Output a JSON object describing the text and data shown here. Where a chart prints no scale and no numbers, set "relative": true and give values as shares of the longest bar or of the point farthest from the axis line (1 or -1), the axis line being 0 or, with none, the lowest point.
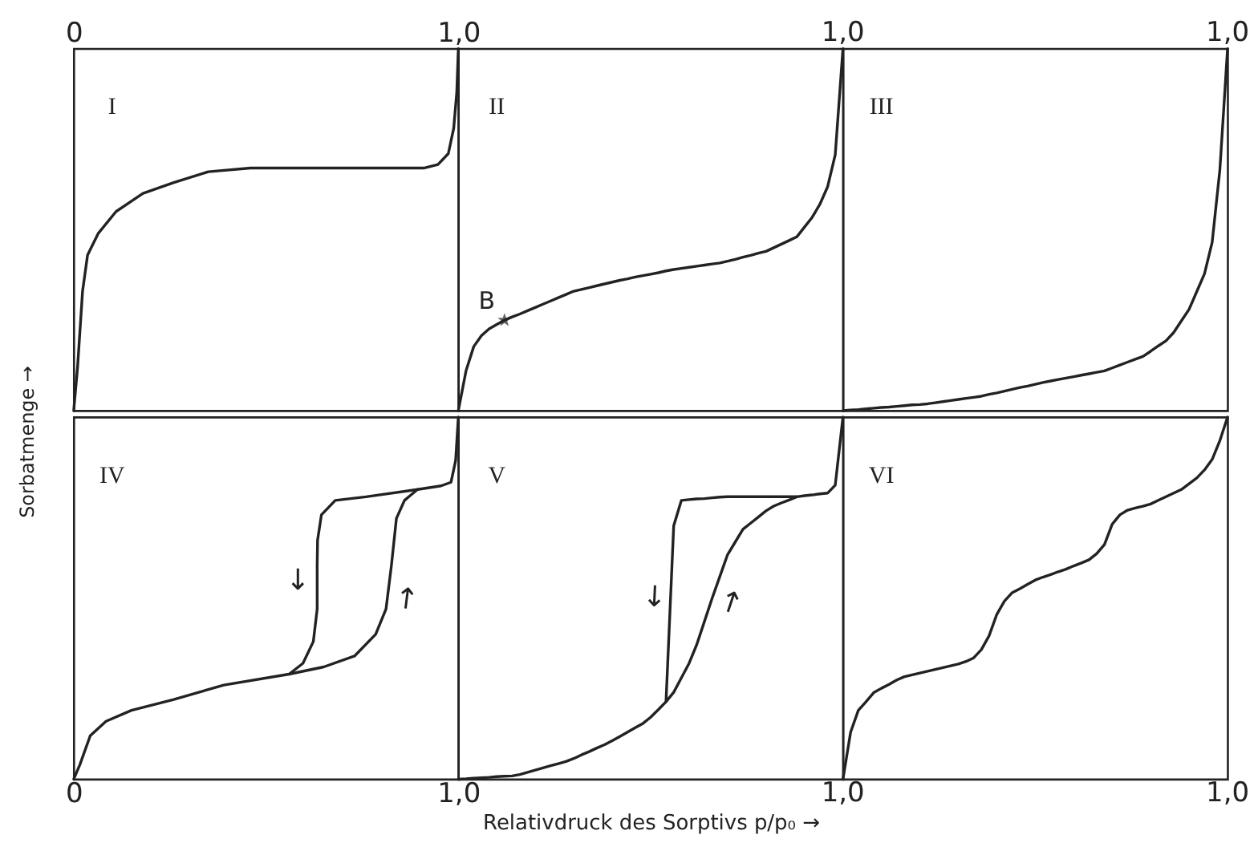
{
  "chart_data": [
    {
      "type": "line",
      "title": "I",
      "relative": true,
      "xlim": [
        0,
        1
      ],
      "xticks": [
        0,
        {
          "value": 1,
          "label": "1,0"
        }
      ],
      "series": [
        {
          "color": "#222222",
          "x": [
            0,
            0.01,
            0.023,
            0.036,
            0.064,
            0.11,
            0.18,
            0.26,
            0.35,
            0.46,
            0.62,
            0.76,
            0.91,
            0.947,
            0.974,
            0.988,
            0.996,
            1
          ],
          "values": [
            0,
            0.12,
            0.33,
            0.43,
            0.49,
            0.55,
            0.6,
            0.63,
            0.66,
            0.67,
            0.67,
            0.67,
            0.67,
            0.68,
            0.71,
            0.78,
            0.88,
            1
          ]
        }
      ]
    },
    {
      "type": "line",
      "title": "II",
      "relative": true,
      "annotations": [
        "1,0"
      ],
      "categories": [
        null,
        null,
        null,
        null,
        null,
        null,
        null,
        null,
        null,
        null,
        null,
        null,
        null,
        null,
        null,
        null,
        null,
        null,
        null,
        null,
        null,
        null,
        null,
        null,
        null,
        null,
        null,
        null,
        null,
        null,
        null,
        null,
        null,
        null,
        null,
        null,
        null,
        null,
        null,
        null,
        null,
        null,
        null,
        null,
        null,
        null,
        null,
        null,
        null,
        null,
        null
      ],
      "series": [
        {
          "color": "#222222",
          "values": [
            0,
            0.11,
            0.177,
            0.207,
            0.226,
            0.238,
            0.25,
            0.259,
            0.267,
            0.276,
            0.285,
            0.294,
            0.303,
            0.312,
            0.321,
            0.33,
            0.335,
            0.34,
            0.345,
            0.35,
            0.355,
            0.36,
            0.364,
            0.369,
            0.373,
            0.377,
            0.381,
            0.386,
            0.39,
            0.393,
            0.396,
            0.399,
            0.402,
            0.405,
            0.408,
            0.413,
            0.418,
            0.424,
            0.429,
            0.435,
            0.44,
            0.45,
            0.46,
            0.47,
            0.48,
            0.507,
            0.534,
            0.57,
            0.618,
            0.707,
            1
          ]
        },
        {
          "name": "B",
          "marker": "star",
          "color": "#222222",
          "values": [
            null,
            null,
            null,
            null,
            null,
            null,
            0.25,
            null,
            null,
            null,
            null,
            null,
            null,
            null,
            null,
            null,
            null,
            null,
            null,
            null,
            null,
            null,
            null,
            null,
            null,
            null,
            null,
            null,
            null,
            null,
            null,
            null,
            null,
            null,
            null,
            null,
            null,
            null,
            null,
            null,
            null,
            null,
            null,
            null,
            null,
            null,
            null,
            null,
            null,
            null,
            null
          ]
        }
      ]
    },
    {
      "type": "line",
      "title": "III",
      "relative": true,
      "annotations": [
        "1,0"
      ],
      "categories": [
        null,
        null,
        null,
        null,
        null,
        null,
        null,
        null,
        null,
        null,
        null,
        null,
        null,
        null,
        null,
        null,
        null,
        null,
        null,
        null,
        null,
        null,
        null,
        null,
        null,
        null,
        null,
        null,
        null,
        null,
        null,
        null,
        null,
        null,
        null,
        null,
        null,
        null,
        null,
        null,
        null,
        null,
        null,
        null,
        null,
        null,
        null,
        null,
        null,
        null,
        null
      ],
      "series": [
        {
          "color": "#222222",
          "values": [
            0,
            0.002,
            0.003,
            0.005,
            0.007,
            0.009,
            0.01,
            0.012,
            0.014,
            0.016,
            0.017,
            0.019,
            0.022,
            0.025,
            0.028,
            0.031,
            0.034,
            0.037,
            0.04,
            0.045,
            0.049,
            0.054,
            0.059,
            0.064,
            0.068,
            0.073,
            0.078,
            0.082,
            0.086,
            0.09,
            0.094,
            0.098,
            0.102,
            0.106,
            0.11,
            0.118,
            0.126,
            0.134,
            0.142,
            0.15,
            0.164,
            0.179,
            0.193,
            0.216,
            0.248,
            0.28,
            0.329,
            0.378,
            0.465,
            0.665,
            1
          ]
        }
      ]
    },
    {
      "type": "line",
      "title": "IV",
      "ylabel": "Sorbatmenge →",
      "relative": true,
      "xlim": [
        0,
        1
      ],
      "xticks": [
        0,
        {
          "value": 1,
          "label": "1,0"
        }
      ],
      "series": [
        {
          "name": "↑",
          "color": "#222222",
          "x": [
            0,
            0.016,
            0.043,
            0.084,
            0.15,
            0.26,
            0.39,
            0.56,
            0.65,
            0.73,
            0.785,
            0.812,
            0.826,
            0.839,
            0.86,
            0.894,
            0.955,
            0.981,
            0.993,
            1
          ],
          "values": [
            0,
            0.04,
            0.12,
            0.16,
            0.19,
            0.22,
            0.26,
            0.29,
            0.31,
            0.34,
            0.4,
            0.47,
            0.59,
            0.72,
            0.77,
            0.8,
            0.81,
            0.82,
            0.88,
            1
          ]
        },
        {
          "name": "↓",
          "color": "#222222",
          "x": [
            0.894,
            0.76,
            0.68,
            0.644,
            0.634,
            0.633,
            0.633,
            0.623,
            0.596,
            0.56
          ],
          "values": [
            0.8,
            0.78,
            0.77,
            0.73,
            0.66,
            0.59,
            0.47,
            0.38,
            0.32,
            0.29
          ]
        }
      ]
    },
    {
      "type": "line",
      "title": "V",
      "xlabel": "Relativdruck des Sorptivs  p/p₀  →",
      "relative": true,
      "annotations": [
        "1,0"
      ],
      "categories": [
        null,
        null,
        null,
        null,
        null,
        null,
        null,
        null,
        null,
        null,
        null,
        null,
        null,
        null,
        null,
        null,
        null,
        null,
        null,
        null,
        null,
        null,
        null,
        null,
        null,
        null,
        null,
        null,
        null,
        null,
        null,
        null,
        null,
        null,
        null,
        null,
        null,
        null,
        null,
        null,
        null,
        null,
        null,
        null,
        null,
        null,
        null,
        null,
        null,
        null,
        null
      ],
      "series": [
        {
          "name": "↑",
          "color": "#222222",
          "values": [
            0,
            0.001,
            0.003,
            0.004,
            0.005,
            0.007,
            0.008,
            0.009,
            0.013,
            0.019,
            0.025,
            0.031,
            0.037,
            0.043,
            0.049,
            0.057,
            0.067,
            0.076,
            0.086,
            0.095,
            0.106,
            0.118,
            0.13,
            0.142,
            0.154,
            0.171,
            0.192,
            0.214,
            0.24,
            0.28,
            0.32,
            0.372,
            0.436,
            0.5,
            0.56,
            0.62,
            0.655,
            0.69,
            0.707,
            0.724,
            0.741,
            0.754,
            0.763,
            0.771,
            0.78,
            0.783,
            0.785,
            0.788,
            0.79,
            0.812,
            1
          ]
        },
        {
          "name": "↓",
          "color": "#222222",
          "values": [
            null,
            null,
            null,
            null,
            null,
            null,
            null,
            null,
            null,
            null,
            null,
            null,
            null,
            null,
            null,
            null,
            null,
            null,
            null,
            null,
            null,
            null,
            null,
            null,
            null,
            null,
            null,
            0.214,
            0.7,
            0.77,
            0.772,
            0.774,
            0.775,
            0.777,
            0.779,
            0.78,
            0.78,
            0.78,
            0.78,
            0.78,
            0.78,
            0.78,
            0.78,
            0.78,
            0.78,
            null,
            null,
            null,
            null,
            null,
            null
          ]
        }
      ]
    },
    {
      "type": "line",
      "title": "VI",
      "relative": true,
      "annotations": [
        "1,0"
      ],
      "categories": [
        null,
        null,
        null,
        null,
        null,
        null,
        null,
        null,
        null,
        null,
        null,
        null,
        null,
        null,
        null,
        null,
        null,
        null,
        null,
        null,
        null,
        null,
        null,
        null,
        null,
        null,
        null,
        null,
        null,
        null,
        null,
        null,
        null,
        null,
        null,
        null,
        null,
        null,
        null,
        null,
        null,
        null,
        null,
        null,
        null,
        null,
        null,
        null,
        null,
        null,
        null
      ],
      "series": [
        {
          "color": "#222222",
          "values": [
            0,
            0.13,
            0.19,
            0.214,
            0.239,
            0.251,
            0.262,
            0.274,
            0.283,
            0.288,
            0.293,
            0.298,
            0.303,
            0.308,
            0.313,
            0.318,
            0.325,
            0.335,
            0.358,
            0.396,
            0.455,
            0.492,
            0.515,
            0.526,
            0.538,
            0.55,
            0.558,
            0.565,
            0.573,
            0.58,
            0.589,
            0.597,
            0.606,
            0.623,
            0.648,
            0.704,
            0.73,
            0.743,
            0.749,
            0.754,
            0.76,
            0.77,
            0.78,
            0.79,
            0.8,
            0.816,
            0.832,
            0.854,
            0.883,
            0.935,
            1
          ]
        }
      ]
    }
  ]
}
